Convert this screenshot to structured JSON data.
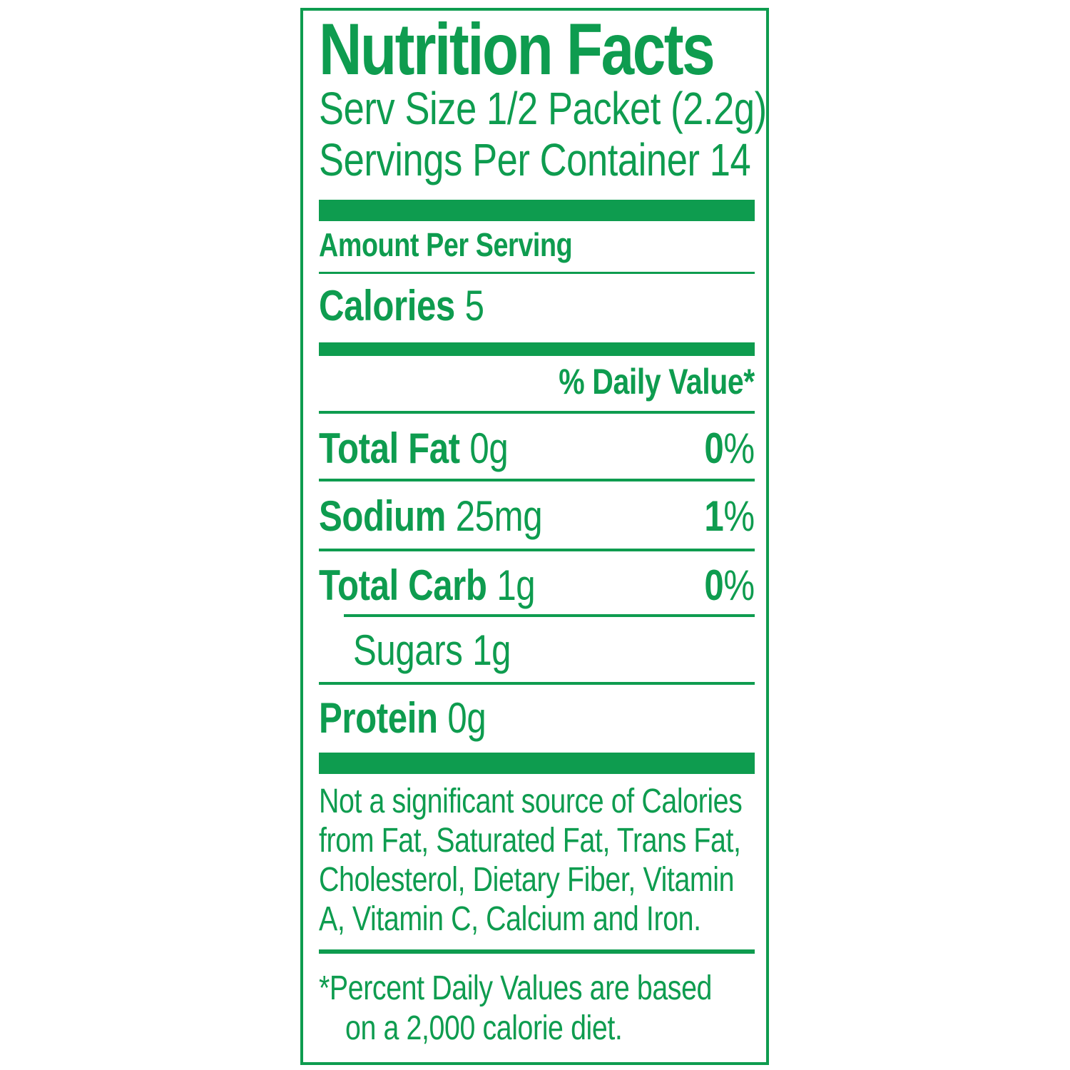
{
  "colors": {
    "green": "#0e9c4f",
    "background": "#ffffff"
  },
  "label": {
    "title": "Nutrition Facts",
    "serving_size": "Serv Size 1/2 Packet (2.2g)",
    "servings_per_container": "Servings Per Container 14",
    "amount_per_serving": "Amount Per Serving",
    "calories": {
      "name": "Calories",
      "value": "5"
    },
    "daily_value_header": "% Daily Value*",
    "nutrients": [
      {
        "name": "Total Fat",
        "amount": "0g",
        "dv_number": "0",
        "dv_sign": "%"
      },
      {
        "name": "Sodium",
        "amount": "25mg",
        "dv_number": "1",
        "dv_sign": "%"
      },
      {
        "name": "Total Carb",
        "amount": "1g",
        "dv_number": "0",
        "dv_sign": "%"
      }
    ],
    "sub_nutrient": {
      "name": "Sugars",
      "amount": "1g"
    },
    "protein": {
      "name": "Protein",
      "amount": "0g"
    },
    "disclaimer_lines": [
      "Not a significant source of Calories",
      "from Fat, Saturated Fat, Trans Fat,",
      "Cholesterol, Dietary Fiber, Vitamin",
      "A, Vitamin C, Calcium and Iron."
    ],
    "footnote_lines": [
      "*Percent Daily Values are based",
      "on a 2,000 calorie diet."
    ]
  }
}
